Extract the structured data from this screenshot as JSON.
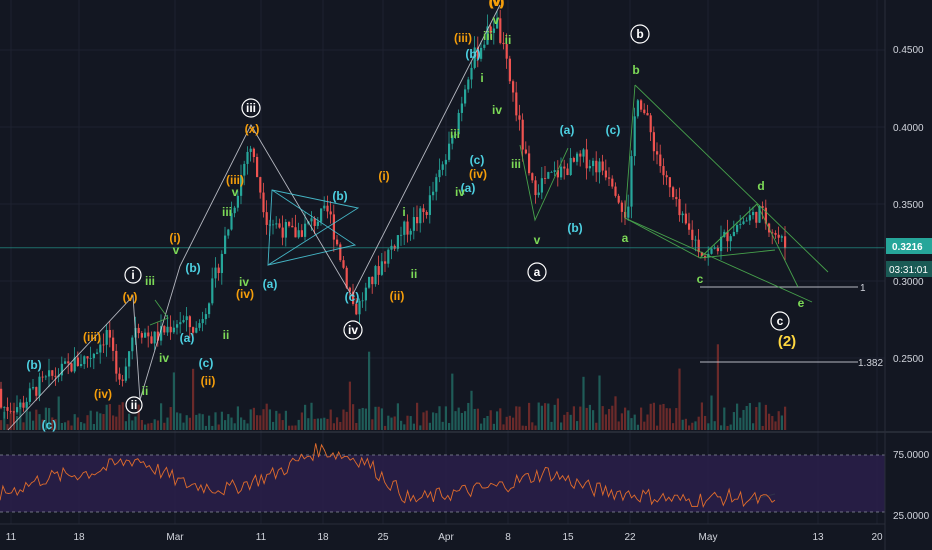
{
  "colors": {
    "background": "#131722",
    "grid": "#1e2230",
    "text": "#d1d4dc",
    "up": "#26a69a",
    "down": "#ef5350",
    "up_volume": "#1f5c58",
    "down_volume": "#6b2a2a",
    "price_line": "#26a69a",
    "label_cyan": "#4dd0e1",
    "label_orange": "#f59e0b",
    "label_green": "#7cd957",
    "label_yellow": "#ffd740",
    "rsi_line": "#e06c2c",
    "rsi_band": "#2a1f4a",
    "white_line": "#d1d4dc",
    "green_line": "#4caf50"
  },
  "price_axis": {
    "ticks": [
      "0.4500",
      "0.4000",
      "0.3500",
      "0.3000",
      "0.2500"
    ],
    "current_price": "0.3216",
    "countdown": "03:31:01"
  },
  "rsi_axis": {
    "ticks": [
      "75.0000",
      "25.0000"
    ]
  },
  "time_axis": {
    "ticks": [
      "11",
      "18",
      "Mar",
      "11",
      "18",
      "25",
      "Apr",
      "8",
      "15",
      "22",
      "May",
      "13",
      "20"
    ]
  },
  "fib_levels": [
    "1",
    "1.382"
  ],
  "chart_data": {
    "type": "candlestick",
    "title": "",
    "instrument_hint": "price chart with Elliott wave annotations",
    "x": {
      "tick_labels": [
        "11",
        "18",
        "Mar",
        "11",
        "18",
        "25",
        "Apr",
        "8",
        "15",
        "22",
        "May",
        "13",
        "20"
      ],
      "note": "daily ticks; labels refer to Feb 11 through May 20"
    },
    "y": {
      "range": [
        0.2,
        0.47
      ],
      "tick_values": [
        0.25,
        0.3,
        0.35,
        0.4,
        0.45
      ],
      "current_price": 0.3216
    },
    "price_path": [
      {
        "date": "Feb 5",
        "price": 0.23
      },
      {
        "date": "Feb 8",
        "price": 0.217
      },
      {
        "date": "Feb 12",
        "price": 0.219
      },
      {
        "date": "Feb 14",
        "price": 0.232
      },
      {
        "date": "Feb 17",
        "price": 0.243
      },
      {
        "date": "Feb 20",
        "price": 0.252
      },
      {
        "date": "Feb 22",
        "price": 0.268
      },
      {
        "date": "Feb 23",
        "price": 0.228
      },
      {
        "date": "Feb 25",
        "price": 0.272
      },
      {
        "date": "Feb 27",
        "price": 0.262
      },
      {
        "date": "Mar 2",
        "price": 0.275
      },
      {
        "date": "Mar 4",
        "price": 0.268
      },
      {
        "date": "Mar 6",
        "price": 0.3
      },
      {
        "date": "Mar 8",
        "price": 0.345
      },
      {
        "date": "Mar 10",
        "price": 0.39
      },
      {
        "date": "Mar 12",
        "price": 0.34
      },
      {
        "date": "Mar 15",
        "price": 0.33
      },
      {
        "date": "Mar 19",
        "price": 0.345
      },
      {
        "date": "Mar 22",
        "price": 0.28
      },
      {
        "date": "Mar 25",
        "price": 0.312
      },
      {
        "date": "Mar 27",
        "price": 0.33
      },
      {
        "date": "Mar 30",
        "price": 0.345
      },
      {
        "date": "Apr 2",
        "price": 0.39
      },
      {
        "date": "Apr 4",
        "price": 0.44
      },
      {
        "date": "Apr 7",
        "price": 0.47
      },
      {
        "date": "Apr 9",
        "price": 0.42
      },
      {
        "date": "Apr 11",
        "price": 0.36
      },
      {
        "date": "Apr 14",
        "price": 0.37
      },
      {
        "date": "Apr 17",
        "price": 0.38
      },
      {
        "date": "Apr 20",
        "price": 0.37
      },
      {
        "date": "Apr 22",
        "price": 0.34
      },
      {
        "date": "Apr 23",
        "price": 0.425
      },
      {
        "date": "Apr 26",
        "price": 0.37
      },
      {
        "date": "Apr 28",
        "price": 0.34
      },
      {
        "date": "May 1",
        "price": 0.315
      },
      {
        "date": "May 4",
        "price": 0.335
      },
      {
        "date": "May 7",
        "price": 0.345
      },
      {
        "date": "May 10",
        "price": 0.3216
      }
    ],
    "rsi": {
      "levels": [
        75,
        25
      ],
      "approx_path": [
        40,
        55,
        60,
        72,
        50,
        45,
        58,
        80,
        70,
        35,
        42,
        48,
        60,
        45,
        40,
        35,
        38,
        34
      ]
    },
    "fibonacci_extension": [
      {
        "label": "1",
        "price": 0.296
      },
      {
        "label": "1.382",
        "price": 0.245
      }
    ],
    "wave_labels": [
      {
        "text": "(v)",
        "color": "orange"
      },
      {
        "text": "(b)",
        "color": "cyan"
      },
      {
        "text": "(c)",
        "color": "cyan"
      },
      {
        "text": "(iii)",
        "color": "orange"
      },
      {
        "text": "(iv)",
        "color": "orange"
      },
      {
        "text": "i",
        "color": "white",
        "circled": true
      },
      {
        "text": "(v)",
        "color": "orange"
      },
      {
        "text": "ii",
        "color": "white",
        "circled": true
      },
      {
        "text": "ii",
        "color": "green"
      },
      {
        "text": "iii",
        "color": "green"
      },
      {
        "text": "iv",
        "color": "green"
      },
      {
        "text": "(i)",
        "color": "orange"
      },
      {
        "text": "v",
        "color": "green"
      },
      {
        "text": "(b)",
        "color": "cyan"
      },
      {
        "text": "(a)",
        "color": "cyan"
      },
      {
        "text": "(c)",
        "color": "cyan"
      },
      {
        "text": "(ii)",
        "color": "orange"
      },
      {
        "text": "(iii)",
        "color": "orange"
      },
      {
        "text": "iii",
        "color": "green"
      },
      {
        "text": "v",
        "color": "green"
      },
      {
        "text": "(iv)",
        "color": "orange"
      },
      {
        "text": "iv",
        "color": "green"
      },
      {
        "text": "ii",
        "color": "green"
      },
      {
        "text": "iii",
        "color": "white",
        "circled": true
      },
      {
        "text": "(x)",
        "color": "orange"
      },
      {
        "text": "(a)",
        "color": "cyan"
      },
      {
        "text": "(b)",
        "color": "cyan"
      },
      {
        "text": "(c)",
        "color": "cyan"
      },
      {
        "text": "iv",
        "color": "white",
        "circled": true
      },
      {
        "text": "(i)",
        "color": "orange"
      },
      {
        "text": "(ii)",
        "color": "orange"
      },
      {
        "text": "i",
        "color": "green"
      },
      {
        "text": "ii",
        "color": "green"
      },
      {
        "text": "(iii)",
        "color": "orange"
      },
      {
        "text": "(b)",
        "color": "cyan"
      },
      {
        "text": "iii",
        "color": "green"
      },
      {
        "text": "(c)",
        "color": "cyan"
      },
      {
        "text": "(iv)",
        "color": "orange"
      },
      {
        "text": "(a)",
        "color": "cyan"
      },
      {
        "text": "iv",
        "color": "green"
      },
      {
        "text": "(v)",
        "color": "orange"
      },
      {
        "text": "iii",
        "color": "green"
      },
      {
        "text": "ii",
        "color": "green"
      },
      {
        "text": "i",
        "color": "green"
      },
      {
        "text": "v",
        "color": "green"
      },
      {
        "text": "iv",
        "color": "green"
      },
      {
        "text": "iii",
        "color": "green"
      },
      {
        "text": "v",
        "color": "green"
      },
      {
        "text": "a",
        "color": "white",
        "circled": true
      },
      {
        "text": "(a)",
        "color": "cyan"
      },
      {
        "text": "(b)",
        "color": "cyan"
      },
      {
        "text": "(c)",
        "color": "cyan"
      },
      {
        "text": "b",
        "color": "white",
        "circled": true
      },
      {
        "text": "b",
        "color": "green"
      },
      {
        "text": "a",
        "color": "green"
      },
      {
        "text": "c",
        "color": "green"
      },
      {
        "text": "d",
        "color": "green"
      },
      {
        "text": "e",
        "color": "green"
      },
      {
        "text": "c",
        "color": "white",
        "circled": true
      },
      {
        "text": "(2)",
        "color": "yellow"
      }
    ]
  }
}
